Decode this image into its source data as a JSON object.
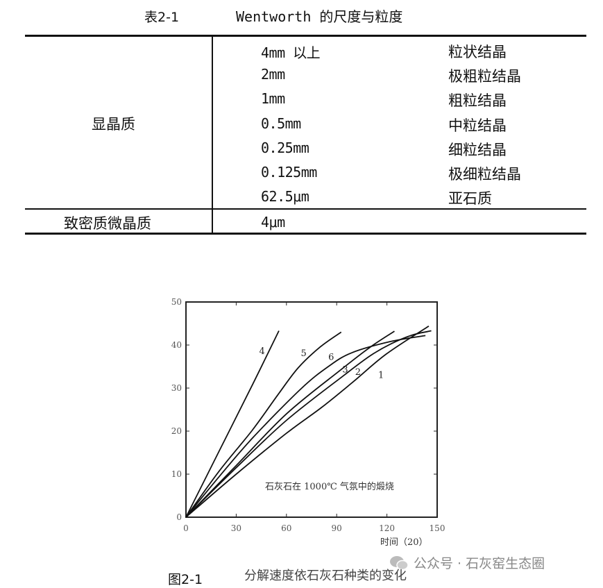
{
  "table": {
    "caption_number": "表2-1",
    "caption_title": "Wentworth 的尺度与粒度",
    "groups": [
      {
        "label": "显晶质",
        "rows": [
          {
            "size": "4mm 以上",
            "name": "粒状结晶"
          },
          {
            "size": "2mm",
            "name": "极粗粒结晶"
          },
          {
            "size": "1mm",
            "name": "粗粒结晶"
          },
          {
            "size": "0.5mm",
            "name": "中粒结晶"
          },
          {
            "size": "0.25mm",
            "name": "细粒结晶"
          },
          {
            "size": "0.125mm",
            "name": "极细粒结晶"
          },
          {
            "size": "62.5μm",
            "name": "亚石质"
          }
        ]
      },
      {
        "label": "致密质微晶质",
        "rows": [
          {
            "size": "4μm",
            "name": ""
          }
        ]
      }
    ]
  },
  "figure": {
    "number": "图2-1",
    "caption": "分解速度依石灰石种类的变化"
  },
  "watermark": {
    "text": "公众号 · 石灰窑生态圈",
    "icon": "wechat-icon"
  },
  "chart_data": {
    "type": "line",
    "title": "",
    "annotation": "石灰石在 1000℃ 气氛中的煅烧",
    "xlabel": "时间（20）",
    "ylabel": "",
    "xlim": [
      0,
      150
    ],
    "ylim": [
      0,
      50
    ],
    "xticks": [
      "0",
      "30",
      "60",
      "90",
      "120",
      "150"
    ],
    "yticks": [
      "0",
      "10",
      "20",
      "30",
      "40",
      "50"
    ],
    "grid": false,
    "series": [
      {
        "name": "1",
        "points": [
          [
            0,
            0
          ],
          [
            30,
            10
          ],
          [
            60,
            19.5
          ],
          [
            81,
            25.5
          ],
          [
            100,
            31.5
          ],
          [
            119.6,
            37.9
          ],
          [
            145,
            44.4
          ]
        ],
        "label_at": [
          114.8,
          32.3
        ]
      },
      {
        "name": "2",
        "points": [
          [
            0,
            0
          ],
          [
            30,
            11.5
          ],
          [
            60,
            22.5
          ],
          [
            94.8,
            33.1
          ],
          [
            110,
            37.5
          ],
          [
            122,
            40.2
          ],
          [
            135,
            42.3
          ],
          [
            146.5,
            43.3
          ]
        ],
        "label_at": [
          101,
          33.1
        ]
      },
      {
        "name": "3",
        "points": [
          [
            0,
            0
          ],
          [
            30,
            12
          ],
          [
            60,
            24
          ],
          [
            92,
            34.1
          ],
          [
            110,
            39.5
          ],
          [
            124.5,
            43.2
          ]
        ],
        "label_at": [
          93.4,
          33.6
        ]
      },
      {
        "name": "4",
        "points": [
          [
            0,
            0
          ],
          [
            20,
            15.5
          ],
          [
            40,
            31
          ],
          [
            55.5,
            43.3
          ]
        ],
        "label_at": [
          43.7,
          37.9
        ]
      },
      {
        "name": "5",
        "points": [
          [
            0,
            0
          ],
          [
            20,
            10.8
          ],
          [
            39.6,
            20.2
          ],
          [
            55,
            28.5
          ],
          [
            67,
            34.7
          ],
          [
            80,
            39.5
          ],
          [
            92.7,
            43
          ]
        ],
        "label_at": [
          68.6,
          37.4
        ]
      },
      {
        "name": "6",
        "points": [
          [
            0,
            0
          ],
          [
            20,
            9.5
          ],
          [
            40,
            18.5
          ],
          [
            68.6,
            29.8
          ],
          [
            85,
            35
          ],
          [
            99,
            38.2
          ],
          [
            122,
            40.8
          ],
          [
            143,
            42.2
          ]
        ],
        "label_at": [
          85,
          36.5
        ]
      }
    ]
  }
}
